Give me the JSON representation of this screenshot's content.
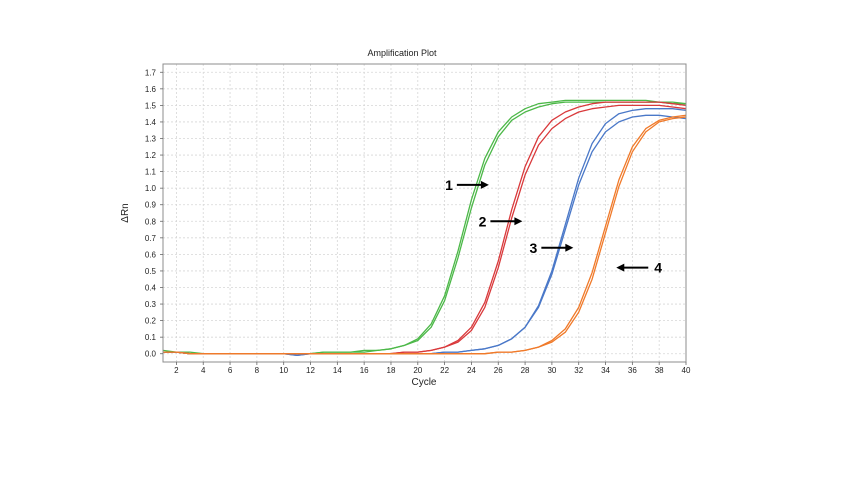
{
  "chart_data": {
    "type": "line",
    "title": "Amplification Plot",
    "xlabel": "Cycle",
    "ylabel": "ΔRn",
    "xlim": [
      1,
      40
    ],
    "ylim": [
      -0.05,
      1.75
    ],
    "xticks": [
      2,
      4,
      6,
      8,
      10,
      12,
      14,
      16,
      18,
      20,
      22,
      24,
      26,
      28,
      30,
      32,
      34,
      36,
      38,
      40
    ],
    "yticks": [
      0.0,
      0.1,
      0.2,
      0.3,
      0.4,
      0.5,
      0.6,
      0.7,
      0.8,
      0.9,
      1.0,
      1.1,
      1.2,
      1.3,
      1.4,
      1.5,
      1.6,
      1.7
    ],
    "grid": true,
    "x": [
      1,
      2,
      3,
      4,
      5,
      6,
      7,
      8,
      9,
      10,
      11,
      12,
      13,
      14,
      15,
      16,
      17,
      18,
      19,
      20,
      21,
      22,
      23,
      24,
      25,
      26,
      27,
      28,
      29,
      30,
      31,
      32,
      33,
      34,
      35,
      36,
      37,
      38,
      39,
      40
    ],
    "series": [
      {
        "color": "#4cb848",
        "values": [
          0.01,
          0.01,
          0.0,
          0.0,
          0.0,
          0.0,
          0.0,
          0.0,
          0.0,
          0.0,
          0.0,
          0.0,
          0.01,
          0.01,
          0.01,
          0.01,
          0.02,
          0.03,
          0.05,
          0.09,
          0.18,
          0.35,
          0.62,
          0.93,
          1.18,
          1.34,
          1.43,
          1.48,
          1.51,
          1.52,
          1.53,
          1.53,
          1.53,
          1.53,
          1.53,
          1.53,
          1.53,
          1.52,
          1.52,
          1.51
        ]
      },
      {
        "color": "#4cb848",
        "values": [
          0.02,
          0.01,
          0.01,
          0.0,
          0.0,
          0.0,
          0.0,
          0.0,
          0.0,
          0.0,
          0.0,
          0.0,
          0.01,
          0.01,
          0.01,
          0.02,
          0.02,
          0.03,
          0.05,
          0.08,
          0.16,
          0.32,
          0.58,
          0.88,
          1.14,
          1.31,
          1.41,
          1.46,
          1.49,
          1.51,
          1.52,
          1.52,
          1.52,
          1.52,
          1.52,
          1.52,
          1.52,
          1.52,
          1.51,
          1.51
        ]
      },
      {
        "color": "#d9393b",
        "values": [
          0.01,
          0.01,
          0.0,
          0.0,
          0.0,
          0.0,
          0.0,
          0.0,
          0.0,
          0.0,
          0.0,
          0.0,
          0.0,
          0.0,
          0.0,
          0.0,
          0.0,
          0.0,
          0.01,
          0.01,
          0.02,
          0.04,
          0.07,
          0.14,
          0.28,
          0.52,
          0.82,
          1.08,
          1.26,
          1.36,
          1.42,
          1.46,
          1.48,
          1.49,
          1.5,
          1.5,
          1.5,
          1.5,
          1.49,
          1.48
        ]
      },
      {
        "color": "#d9393b",
        "values": [
          0.01,
          0.01,
          0.0,
          0.0,
          0.0,
          0.0,
          0.0,
          0.0,
          0.0,
          0.0,
          0.0,
          0.0,
          0.0,
          0.0,
          0.0,
          0.0,
          0.0,
          0.0,
          0.01,
          0.01,
          0.02,
          0.04,
          0.08,
          0.16,
          0.31,
          0.56,
          0.87,
          1.13,
          1.31,
          1.41,
          1.46,
          1.49,
          1.51,
          1.52,
          1.52,
          1.52,
          1.52,
          1.52,
          1.51,
          1.5
        ]
      },
      {
        "color": "#4a78c8",
        "values": [
          0.01,
          0.01,
          0.0,
          0.0,
          0.0,
          0.0,
          0.0,
          0.0,
          0.0,
          0.0,
          -0.01,
          0.0,
          0.0,
          0.0,
          0.0,
          0.0,
          0.0,
          0.0,
          0.0,
          0.0,
          0.0,
          0.01,
          0.01,
          0.02,
          0.03,
          0.05,
          0.09,
          0.16,
          0.28,
          0.48,
          0.75,
          1.02,
          1.22,
          1.34,
          1.4,
          1.43,
          1.44,
          1.44,
          1.43,
          1.42
        ]
      },
      {
        "color": "#4a78c8",
        "values": [
          0.01,
          0.01,
          0.0,
          0.0,
          0.0,
          0.0,
          0.0,
          0.0,
          0.0,
          0.0,
          -0.01,
          0.0,
          0.0,
          0.0,
          0.0,
          0.0,
          0.0,
          0.0,
          0.0,
          0.0,
          0.0,
          0.01,
          0.01,
          0.02,
          0.03,
          0.05,
          0.09,
          0.16,
          0.29,
          0.5,
          0.78,
          1.06,
          1.27,
          1.39,
          1.45,
          1.47,
          1.48,
          1.48,
          1.48,
          1.47
        ]
      },
      {
        "color": "#f07a2a",
        "values": [
          0.01,
          0.01,
          0.0,
          0.0,
          0.0,
          0.0,
          0.0,
          0.0,
          0.0,
          0.0,
          0.0,
          0.0,
          0.0,
          0.0,
          0.0,
          0.0,
          0.0,
          0.0,
          0.0,
          0.0,
          0.0,
          0.0,
          0.0,
          0.0,
          0.0,
          0.01,
          0.01,
          0.02,
          0.04,
          0.07,
          0.13,
          0.25,
          0.45,
          0.73,
          1.01,
          1.22,
          1.34,
          1.4,
          1.42,
          1.43
        ]
      },
      {
        "color": "#f07a2a",
        "values": [
          0.01,
          0.01,
          0.0,
          0.0,
          0.0,
          0.0,
          0.0,
          0.0,
          0.0,
          0.0,
          0.0,
          0.0,
          0.0,
          0.0,
          0.0,
          0.0,
          0.0,
          0.0,
          0.0,
          0.0,
          0.0,
          0.0,
          0.0,
          0.0,
          0.0,
          0.01,
          0.01,
          0.02,
          0.04,
          0.08,
          0.15,
          0.28,
          0.49,
          0.77,
          1.05,
          1.25,
          1.36,
          1.41,
          1.43,
          1.44
        ]
      }
    ],
    "annotations": [
      {
        "text": "1",
        "arrow": "right",
        "target_x": 25.3,
        "target_y": 1.02
      },
      {
        "text": "2",
        "arrow": "right",
        "target_x": 27.8,
        "target_y": 0.8
      },
      {
        "text": "3",
        "arrow": "right",
        "target_x": 31.6,
        "target_y": 0.64
      },
      {
        "text": "4",
        "arrow": "left",
        "target_x": 34.8,
        "target_y": 0.52
      }
    ]
  }
}
